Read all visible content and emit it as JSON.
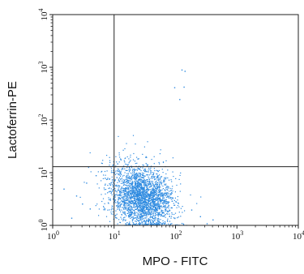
{
  "chart_data": {
    "type": "scatter",
    "xlabel": "MPO - FITC",
    "ylabel": "Lactoferrin-PE",
    "x_scale": "log",
    "y_scale": "log",
    "xlim": [
      1,
      10000
    ],
    "ylim": [
      1,
      10000
    ],
    "x_ticks": [
      {
        "value": 1,
        "base": "10",
        "exp": "0"
      },
      {
        "value": 10,
        "base": "10",
        "exp": "1"
      },
      {
        "value": 100,
        "base": "10",
        "exp": "2"
      },
      {
        "value": 1000,
        "base": "10",
        "exp": "3"
      },
      {
        "value": 10000,
        "base": "10",
        "exp": "4"
      }
    ],
    "y_ticks": [
      {
        "value": 1,
        "base": "10",
        "exp": "0"
      },
      {
        "value": 10,
        "base": "10",
        "exp": "1"
      },
      {
        "value": 100,
        "base": "10",
        "exp": "2"
      },
      {
        "value": 1000,
        "base": "10",
        "exp": "3"
      },
      {
        "value": 10000,
        "base": "10",
        "exp": "4"
      }
    ],
    "quadrant_gates": {
      "x": 10,
      "y": 13
    },
    "grid": false,
    "legend": "none",
    "point_color": "#2f8be0",
    "line_color": "#222222",
    "main_population": {
      "center_x": 28,
      "center_y": 3.5,
      "spread_x_decades": 0.25,
      "spread_y_decades": 0.3,
      "approx_events": 2600
    },
    "sparse_points": [
      {
        "x": 95,
        "y": 420
      },
      {
        "x": 115,
        "y": 250
      },
      {
        "x": 135,
        "y": 430
      },
      {
        "x": 125,
        "y": 910
      },
      {
        "x": 140,
        "y": 860
      },
      {
        "x": 3,
        "y": 2.6
      },
      {
        "x": 2.4,
        "y": 3.7
      },
      {
        "x": 4,
        "y": 2.1
      },
      {
        "x": 3.5,
        "y": 6.5
      },
      {
        "x": 5,
        "y": 9
      },
      {
        "x": 7,
        "y": 8
      },
      {
        "x": 180,
        "y": 2
      },
      {
        "x": 250,
        "y": 1.5
      },
      {
        "x": 320,
        "y": 1.1
      },
      {
        "x": 400,
        "y": 1.3
      },
      {
        "x": 2,
        "y": 1.4
      },
      {
        "x": 1.5,
        "y": 5
      }
    ]
  }
}
